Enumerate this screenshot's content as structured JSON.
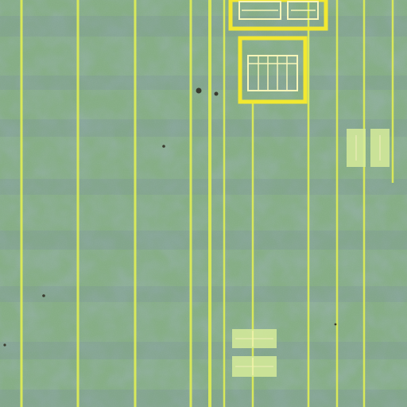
{
  "scene": {
    "kind": "abstract-texture",
    "palette": {
      "background": "#7f9f8c",
      "green": "#8fbf6a",
      "blue_band": "#6f7fb0",
      "line_yellow": "#d8e85a",
      "frame_yellow": "#f2e830",
      "pale_mark": "#d6ec9a",
      "inner_line": "#f7f5b8",
      "dot": "#3a3b2e"
    }
  }
}
